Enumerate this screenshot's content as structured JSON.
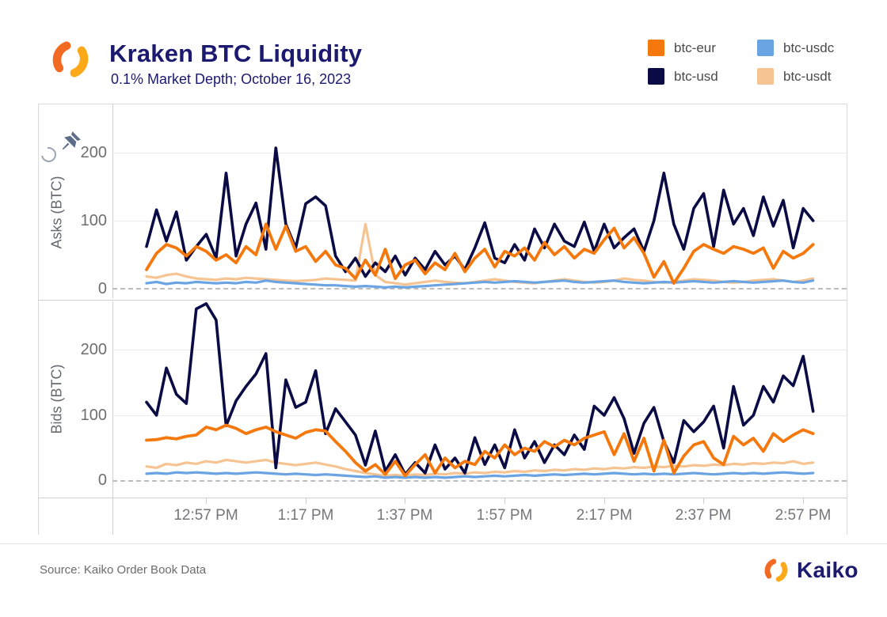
{
  "header": {
    "title": "Kraken BTC Liquidity",
    "subtitle": "0.1% Market Depth; October 16, 2023"
  },
  "legend": {
    "position": "top-right",
    "items": [
      {
        "label": "btc-eur",
        "color": "#f5780c"
      },
      {
        "label": "btc-usd",
        "color": "#0a0a45"
      },
      {
        "label": "btc-usdc",
        "color": "#6ba4e3"
      },
      {
        "label": "btc-usdt",
        "color": "#f6c492"
      }
    ]
  },
  "toolbar": {
    "pin_icon": "pushpin",
    "history_icon": "reset-view-arc"
  },
  "footer": {
    "source": "Source: Kaiko Order Book Data",
    "brand": "Kaiko"
  },
  "chart_data": {
    "type": "line",
    "title": "Kraken BTC Liquidity",
    "subtitle": "0.1% Market Depth; October 16, 2023",
    "x_axis": {
      "start": "12:45 PM",
      "end": "3:00 PM",
      "step_minutes": 2
    },
    "x_ticks": [
      "12:57 PM",
      "1:17 PM",
      "1:37 PM",
      "1:57 PM",
      "2:17 PM",
      "2:37 PM",
      "2:57 PM"
    ],
    "grid": true,
    "panels": [
      {
        "name": "Asks",
        "ylabel": "Asks (BTC)",
        "ylim": [
          0,
          272
        ],
        "ytick_labels": [
          "200",
          "100",
          "0"
        ],
        "series": [
          {
            "name": "btc-eur",
            "values": [
              28,
              52,
              65,
              60,
              48,
              62,
              55,
              42,
              50,
              38,
              62,
              50,
              95,
              58,
              92,
              55,
              62,
              40,
              55,
              35,
              30,
              15,
              42,
              20,
              58,
              15,
              35,
              42,
              22,
              38,
              28,
              52,
              25,
              45,
              58,
              32,
              55,
              48,
              60,
              42,
              68,
              50,
              62,
              45,
              58,
              52,
              72,
              89,
              60,
              75,
              52,
              17,
              40,
              8,
              30,
              55,
              65,
              58,
              52,
              62,
              58,
              52,
              60,
              30,
              55,
              45,
              52,
              65
            ]
          },
          {
            "name": "btc-usd",
            "values": [
              62,
              116,
              70,
              113,
              42,
              62,
              80,
              45,
              170,
              48,
              95,
              126,
              58,
              207,
              95,
              60,
              125,
              135,
              122,
              48,
              25,
              45,
              18,
              38,
              25,
              48,
              20,
              45,
              28,
              55,
              35,
              48,
              28,
              60,
              97,
              45,
              38,
              65,
              42,
              88,
              60,
              95,
              70,
              62,
              98,
              55,
              95,
              60,
              75,
              88,
              55,
              100,
              170,
              95,
              58,
              118,
              140,
              62,
              145,
              95,
              118,
              78,
              135,
              92,
              130,
              60,
              118,
              100
            ]
          },
          {
            "name": "btc-usdc",
            "values": [
              8,
              10,
              7,
              9,
              8,
              10,
              9,
              8,
              9,
              8,
              10,
              9,
              12,
              10,
              9,
              8,
              7,
              6,
              5,
              5,
              4,
              3,
              4,
              3,
              2,
              3,
              2,
              3,
              4,
              5,
              6,
              7,
              8,
              9,
              10,
              9,
              10,
              11,
              10,
              9,
              10,
              11,
              12,
              10,
              9,
              10,
              11,
              12,
              10,
              9,
              8,
              9,
              10,
              9,
              10,
              11,
              10,
              9,
              10,
              11,
              10,
              9,
              10,
              11,
              12,
              10,
              9,
              12
            ]
          },
          {
            "name": "btc-usdt",
            "values": [
              18,
              16,
              20,
              22,
              18,
              15,
              14,
              13,
              15,
              14,
              16,
              15,
              14,
              13,
              12,
              11,
              12,
              13,
              15,
              14,
              13,
              12,
              95,
              20,
              10,
              8,
              6,
              8,
              10,
              12,
              10,
              9,
              8,
              10,
              12,
              14,
              12,
              10,
              9,
              8,
              10,
              12,
              14,
              12,
              10,
              9,
              10,
              12,
              15,
              13,
              12,
              10,
              9,
              10,
              12,
              14,
              13,
              12,
              10,
              9,
              10,
              12,
              13,
              14,
              12,
              10,
              12,
              15
            ]
          }
        ]
      },
      {
        "name": "Bids",
        "ylabel": "Bids (BTC)",
        "ylim": [
          0,
          276
        ],
        "ytick_labels": [
          "200",
          "100",
          "0"
        ],
        "series": [
          {
            "name": "btc-eur",
            "values": [
              62,
              63,
              66,
              64,
              68,
              70,
              82,
              78,
              85,
              80,
              72,
              78,
              82,
              75,
              70,
              65,
              74,
              78,
              76,
              60,
              45,
              28,
              15,
              25,
              10,
              30,
              8,
              25,
              40,
              12,
              35,
              20,
              30,
              25,
              45,
              35,
              55,
              40,
              50,
              45,
              60,
              52,
              62,
              55,
              65,
              70,
              75,
              40,
              72,
              30,
              65,
              15,
              62,
              12,
              38,
              55,
              60,
              35,
              25,
              68,
              55,
              65,
              45,
              72,
              60,
              70,
              78,
              72
            ]
          },
          {
            "name": "btc-usd",
            "values": [
              120,
              100,
              172,
              132,
              118,
              262,
              270,
              245,
              84,
              122,
              144,
              163,
              194,
              20,
              154,
              112,
              120,
              168,
              72,
              110,
              90,
              70,
              24,
              76,
              15,
              40,
              10,
              28,
              12,
              55,
              18,
              35,
              12,
              66,
              25,
              55,
              20,
              78,
              35,
              60,
              28,
              55,
              40,
              70,
              48,
              114,
              100,
              127,
              95,
              42,
              88,
              112,
              60,
              28,
              92,
              75,
              90,
              114,
              50,
              144,
              85,
              100,
              144,
              120,
              160,
              145,
              190,
              106
            ]
          },
          {
            "name": "btc-usdc",
            "values": [
              11,
              12,
              11,
              13,
              12,
              13,
              12,
              11,
              12,
              11,
              12,
              13,
              12,
              11,
              10,
              11,
              10,
              9,
              10,
              9,
              8,
              7,
              6,
              7,
              5,
              6,
              5,
              6,
              5,
              6,
              5,
              6,
              7,
              6,
              7,
              8,
              7,
              8,
              9,
              8,
              9,
              10,
              9,
              10,
              11,
              10,
              11,
              12,
              11,
              10,
              11,
              10,
              11,
              10,
              11,
              12,
              11,
              10,
              11,
              12,
              11,
              12,
              11,
              12,
              13,
              12,
              11,
              12
            ]
          },
          {
            "name": "btc-usdt",
            "values": [
              22,
              20,
              26,
              24,
              28,
              26,
              30,
              28,
              32,
              30,
              28,
              30,
              32,
              28,
              26,
              24,
              26,
              28,
              25,
              22,
              18,
              15,
              12,
              10,
              8,
              9,
              8,
              10,
              9,
              11,
              10,
              12,
              11,
              13,
              12,
              14,
              13,
              15,
              14,
              16,
              15,
              17,
              16,
              18,
              17,
              19,
              18,
              20,
              19,
              21,
              20,
              22,
              21,
              23,
              22,
              24,
              23,
              25,
              24,
              26,
              25,
              27,
              26,
              28,
              27,
              30,
              26,
              28
            ]
          }
        ]
      }
    ]
  }
}
